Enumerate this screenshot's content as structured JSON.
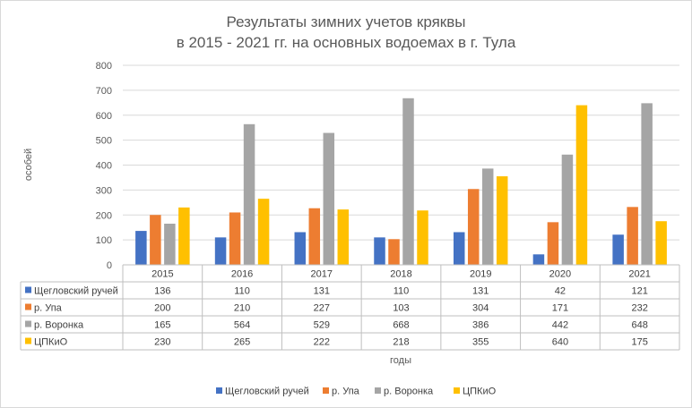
{
  "chart_data": {
    "type": "bar",
    "title": [
      "Результаты зимних учетов кряквы",
      "в 2015 - 2021 гг. на основных водоемах в г. Тула"
    ],
    "xlabel": "годы",
    "ylabel": "особей",
    "categories": [
      "2015",
      "2016",
      "2017",
      "2018",
      "2019",
      "2020",
      "2021"
    ],
    "ylim": [
      0,
      800
    ],
    "yticks": [
      0,
      100,
      200,
      300,
      400,
      500,
      600,
      700,
      800
    ],
    "grid": true,
    "legend": "bottom",
    "data_table": true,
    "series": [
      {
        "name": "Щегловский ручей",
        "color": "#4472C4",
        "values": [
          136,
          110,
          131,
          110,
          131,
          42,
          121
        ]
      },
      {
        "name": "р. Упа",
        "color": "#ED7D31",
        "values": [
          200,
          210,
          227,
          103,
          304,
          171,
          232
        ]
      },
      {
        "name": "р. Воронка",
        "color": "#A5A5A5",
        "values": [
          165,
          564,
          529,
          668,
          386,
          442,
          648
        ]
      },
      {
        "name": "ЦПКиО",
        "color": "#FFC000",
        "values": [
          230,
          265,
          222,
          218,
          355,
          640,
          175
        ]
      }
    ]
  }
}
